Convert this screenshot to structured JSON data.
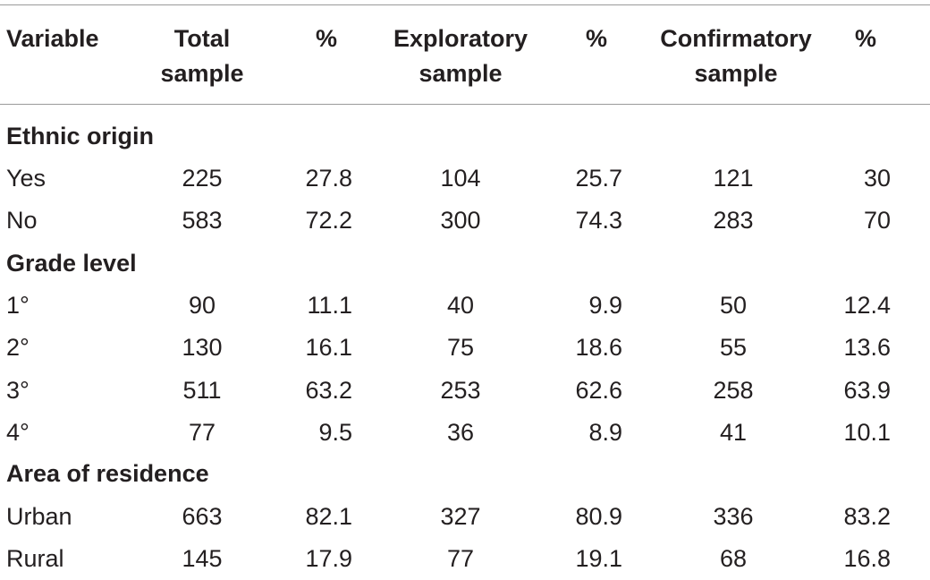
{
  "header": {
    "variable": "Variable",
    "total_line1": "Total",
    "total_line2": "sample",
    "pct1": "%",
    "exploratory_line1": "Exploratory",
    "exploratory_line2": "sample",
    "pct2": "%",
    "confirmatory_line1": "Confirmatory",
    "confirmatory_line2": "sample",
    "pct3": "%"
  },
  "sections": [
    {
      "title": "Ethnic origin",
      "rows": [
        {
          "label": "Yes",
          "total": "225",
          "pct1": "27.8",
          "exploratory": "104",
          "pct2": "25.7",
          "confirmatory": "121",
          "pct3": "30"
        },
        {
          "label": "No",
          "total": "583",
          "pct1": "72.2",
          "exploratory": "300",
          "pct2": "74.3",
          "confirmatory": "283",
          "pct3": "70"
        }
      ]
    },
    {
      "title": "Grade level",
      "rows": [
        {
          "label": "1°",
          "total": "90",
          "pct1": "11.1",
          "exploratory": "40",
          "pct2": "9.9",
          "confirmatory": "50",
          "pct3": "12.4"
        },
        {
          "label": "2°",
          "total": "130",
          "pct1": "16.1",
          "exploratory": "75",
          "pct2": "18.6",
          "confirmatory": "55",
          "pct3": "13.6"
        },
        {
          "label": "3°",
          "total": "511",
          "pct1": "63.2",
          "exploratory": "253",
          "pct2": "62.6",
          "confirmatory": "258",
          "pct3": "63.9"
        },
        {
          "label": "4°",
          "total": "77",
          "pct1": "9.5",
          "exploratory": "36",
          "pct2": "8.9",
          "confirmatory": "41",
          "pct3": "10.1"
        }
      ]
    },
    {
      "title": "Area of residence",
      "rows": [
        {
          "label": "Urban",
          "total": "663",
          "pct1": "82.1",
          "exploratory": "327",
          "pct2": "80.9",
          "confirmatory": "336",
          "pct3": "83.2"
        },
        {
          "label": "Rural",
          "total": "145",
          "pct1": "17.9",
          "exploratory": "77",
          "pct2": "19.1",
          "confirmatory": "68",
          "pct3": "16.8"
        }
      ]
    }
  ]
}
